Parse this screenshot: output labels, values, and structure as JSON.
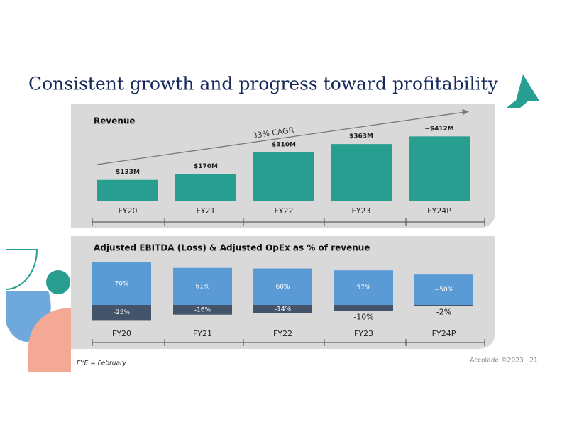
{
  "page": {
    "title": "Consistent growth and progress toward profitability",
    "footnote": "FYE = February",
    "source": "Accolade ©2023",
    "page_number": "21"
  },
  "chart_data": [
    {
      "type": "bar",
      "title": "Revenue",
      "annotation": "33% CAGR",
      "categories": [
        "FY20",
        "FY21",
        "FY22",
        "FY23",
        "FY24P"
      ],
      "values": [
        133,
        170,
        310,
        363,
        412
      ],
      "value_labels": [
        "$133M",
        "$170M",
        "$310M",
        "$363M",
        "~$412M"
      ],
      "color": "#279e8f"
    },
    {
      "type": "stacked_bar",
      "title": "Adjusted EBITDA (Loss) & Adjusted OpEx as % of revenue",
      "categories": [
        "FY20",
        "FY21",
        "FY22",
        "FY23",
        "FY24P"
      ],
      "series": [
        {
          "color": "#5b9bd5",
          "values": [
            70,
            61,
            60,
            57,
            50
          ],
          "value_labels": [
            "70%",
            "61%",
            "60%",
            "57%",
            "~50%"
          ]
        },
        {
          "color": "#44546a",
          "values": [
            -25,
            -16,
            -14,
            -10,
            -2
          ],
          "value_labels": [
            "-25%",
            "-16%",
            "-14%",
            "-10%",
            "-2%"
          ]
        }
      ]
    }
  ]
}
